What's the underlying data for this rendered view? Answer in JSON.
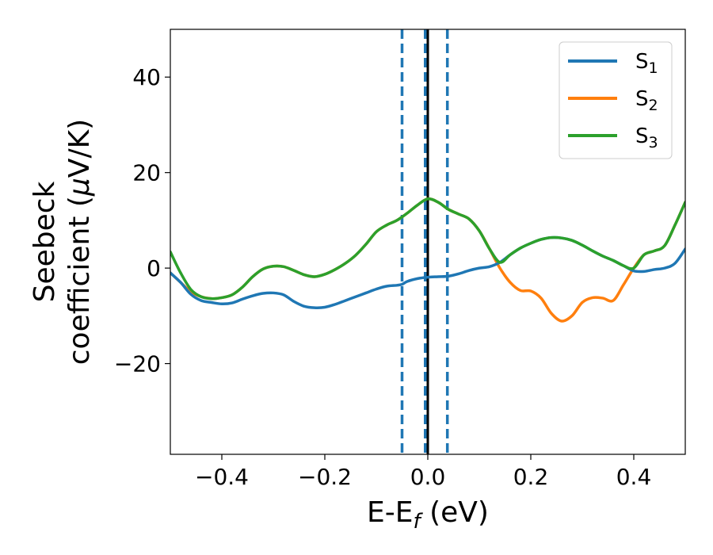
{
  "chart_data": {
    "type": "line",
    "title": "",
    "xlabel": {
      "main": "E-E",
      "sub": "f",
      "unit": " (eV)"
    },
    "ylabel": {
      "line1": "Seebeck",
      "line2_pre": "coefficient  (",
      "mu": "μ",
      "line2_post": "V/K)"
    },
    "xlim": [
      -0.5,
      0.5
    ],
    "ylim": [
      -39,
      50
    ],
    "xticks": [
      -0.4,
      -0.2,
      0.0,
      0.2,
      0.4
    ],
    "xtick_labels": [
      "−0.4",
      "−0.2",
      "0.0",
      "0.2",
      "0.4"
    ],
    "yticks": [
      -20,
      0,
      20,
      40
    ],
    "ytick_labels": [
      "−20",
      "0",
      "20",
      "40"
    ],
    "grid": false,
    "legend_position": "top-right",
    "vlines": [
      {
        "x": -0.05,
        "style": "dashed",
        "color": "#1f77b4"
      },
      {
        "x": -0.005,
        "style": "dashed",
        "color": "#1f77b4"
      },
      {
        "x": 0.038,
        "style": "dashed",
        "color": "#1f77b4"
      },
      {
        "x": 0.0,
        "style": "solid",
        "color": "#000000"
      }
    ],
    "series": [
      {
        "name": "S",
        "sub": "1",
        "color": "#1f77b4",
        "points": [
          [
            -0.5,
            -1
          ],
          [
            -0.48,
            -3
          ],
          [
            -0.46,
            -5.5
          ],
          [
            -0.44,
            -6.8
          ],
          [
            -0.42,
            -7.2
          ],
          [
            -0.4,
            -7.5
          ],
          [
            -0.38,
            -7.3
          ],
          [
            -0.36,
            -6.5
          ],
          [
            -0.34,
            -5.8
          ],
          [
            -0.32,
            -5.3
          ],
          [
            -0.3,
            -5.2
          ],
          [
            -0.28,
            -5.6
          ],
          [
            -0.26,
            -7
          ],
          [
            -0.24,
            -8
          ],
          [
            -0.22,
            -8.3
          ],
          [
            -0.2,
            -8.2
          ],
          [
            -0.18,
            -7.6
          ],
          [
            -0.16,
            -6.8
          ],
          [
            -0.14,
            -6
          ],
          [
            -0.12,
            -5.2
          ],
          [
            -0.1,
            -4.4
          ],
          [
            -0.08,
            -3.8
          ],
          [
            -0.06,
            -3.6
          ],
          [
            -0.05,
            -3.4
          ],
          [
            -0.04,
            -2.8
          ],
          [
            -0.02,
            -2.2
          ],
          [
            0.0,
            -1.9
          ],
          [
            0.02,
            -1.8
          ],
          [
            0.04,
            -1.7
          ],
          [
            0.06,
            -1.2
          ],
          [
            0.08,
            -0.5
          ],
          [
            0.1,
            0
          ],
          [
            0.12,
            0.3
          ],
          [
            0.14,
            1.2
          ],
          [
            0.16,
            2.8
          ],
          [
            0.18,
            4.2
          ],
          [
            0.2,
            5.2
          ],
          [
            0.22,
            6
          ],
          [
            0.24,
            6.4
          ],
          [
            0.26,
            6.3
          ],
          [
            0.28,
            5.8
          ],
          [
            0.3,
            4.8
          ],
          [
            0.32,
            3.6
          ],
          [
            0.34,
            2.5
          ],
          [
            0.36,
            1.6
          ],
          [
            0.38,
            0.5
          ],
          [
            0.4,
            -0.6
          ],
          [
            0.42,
            -0.7
          ],
          [
            0.44,
            -0.3
          ],
          [
            0.46,
            0
          ],
          [
            0.48,
            1
          ],
          [
            0.5,
            4
          ]
        ]
      },
      {
        "name": "S",
        "sub": "2",
        "color": "#ff7f0e",
        "points": [
          [
            -0.5,
            -1
          ],
          [
            -0.48,
            -3
          ],
          [
            -0.46,
            -5
          ],
          [
            -0.44,
            -6
          ],
          [
            -0.42,
            -6.4
          ],
          [
            -0.4,
            -6.2
          ],
          [
            -0.38,
            -5.6
          ],
          [
            -0.36,
            -4
          ],
          [
            -0.34,
            -1.8
          ],
          [
            -0.32,
            -0.2
          ],
          [
            -0.3,
            0.4
          ],
          [
            -0.28,
            0.3
          ],
          [
            -0.26,
            -0.5
          ],
          [
            -0.24,
            -1.4
          ],
          [
            -0.22,
            -1.8
          ],
          [
            -0.2,
            -1.3
          ],
          [
            -0.18,
            -0.3
          ],
          [
            -0.16,
            1
          ],
          [
            -0.14,
            2.7
          ],
          [
            -0.12,
            5
          ],
          [
            -0.1,
            7.6
          ],
          [
            -0.08,
            9
          ],
          [
            -0.06,
            10
          ],
          [
            -0.04,
            11.5
          ],
          [
            -0.02,
            13.2
          ],
          [
            0.0,
            14.5
          ],
          [
            0.02,
            13.8
          ],
          [
            0.04,
            12.3
          ],
          [
            0.06,
            11.3
          ],
          [
            0.08,
            10.3
          ],
          [
            0.1,
            7.8
          ],
          [
            0.12,
            4
          ],
          [
            0.14,
            0
          ],
          [
            0.16,
            -3
          ],
          [
            0.18,
            -4.7
          ],
          [
            0.2,
            -4.8
          ],
          [
            0.22,
            -6.3
          ],
          [
            0.24,
            -9.5
          ],
          [
            0.26,
            -11.1
          ],
          [
            0.28,
            -10
          ],
          [
            0.3,
            -7.2
          ],
          [
            0.32,
            -6.2
          ],
          [
            0.34,
            -6.3
          ],
          [
            0.36,
            -6.8
          ],
          [
            0.38,
            -3.5
          ],
          [
            0.4,
            0
          ],
          [
            0.42,
            2.8
          ],
          [
            0.44,
            3.6
          ],
          [
            0.46,
            4.7
          ],
          [
            0.48,
            9
          ],
          [
            0.5,
            13.8
          ]
        ]
      },
      {
        "name": "S",
        "sub": "3",
        "color": "#2ca02c",
        "points": [
          [
            -0.5,
            3.4
          ],
          [
            -0.48,
            -1
          ],
          [
            -0.46,
            -4.5
          ],
          [
            -0.44,
            -6
          ],
          [
            -0.42,
            -6.4
          ],
          [
            -0.4,
            -6.2
          ],
          [
            -0.38,
            -5.6
          ],
          [
            -0.36,
            -4
          ],
          [
            -0.34,
            -1.8
          ],
          [
            -0.32,
            -0.2
          ],
          [
            -0.3,
            0.4
          ],
          [
            -0.28,
            0.3
          ],
          [
            -0.26,
            -0.5
          ],
          [
            -0.24,
            -1.4
          ],
          [
            -0.22,
            -1.8
          ],
          [
            -0.2,
            -1.3
          ],
          [
            -0.18,
            -0.3
          ],
          [
            -0.16,
            1
          ],
          [
            -0.14,
            2.7
          ],
          [
            -0.12,
            5
          ],
          [
            -0.1,
            7.6
          ],
          [
            -0.08,
            9
          ],
          [
            -0.06,
            10
          ],
          [
            -0.04,
            11.5
          ],
          [
            -0.02,
            13.2
          ],
          [
            0.0,
            14.5
          ],
          [
            0.02,
            13.8
          ],
          [
            0.04,
            12.3
          ],
          [
            0.06,
            11.3
          ],
          [
            0.08,
            10.3
          ],
          [
            0.1,
            7.8
          ],
          [
            0.12,
            4
          ],
          [
            0.14,
            1.2
          ],
          [
            0.16,
            2.8
          ],
          [
            0.18,
            4.2
          ],
          [
            0.2,
            5.2
          ],
          [
            0.22,
            6
          ],
          [
            0.24,
            6.4
          ],
          [
            0.26,
            6.3
          ],
          [
            0.28,
            5.8
          ],
          [
            0.3,
            4.8
          ],
          [
            0.32,
            3.6
          ],
          [
            0.34,
            2.5
          ],
          [
            0.36,
            1.6
          ],
          [
            0.38,
            0.5
          ],
          [
            0.4,
            0
          ],
          [
            0.42,
            2.8
          ],
          [
            0.44,
            3.6
          ],
          [
            0.46,
            4.7
          ],
          [
            0.48,
            9
          ],
          [
            0.5,
            13.8
          ]
        ]
      }
    ]
  }
}
